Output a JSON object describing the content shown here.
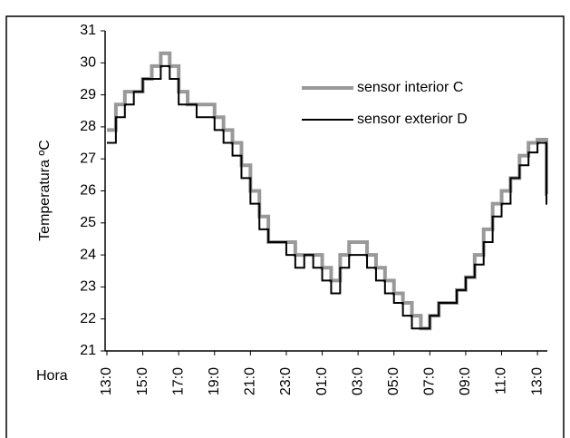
{
  "chart_data": {
    "type": "line",
    "step": "post",
    "y_label": "Temperatura ºC",
    "x_label": "Hora",
    "x": [
      13,
      13.5,
      14,
      14.5,
      15,
      15.5,
      16,
      16.5,
      17,
      17.5,
      18,
      18.5,
      19,
      19.5,
      20,
      20.5,
      21,
      21.5,
      22,
      22.5,
      23,
      23.5,
      24,
      24.5,
      25,
      25.5,
      26,
      26.5,
      27,
      27.5,
      28,
      28.5,
      29,
      29.5,
      30,
      30.5,
      31,
      31.5,
      32,
      32.5,
      33,
      33.5,
      34,
      34.5,
      35,
      35.5,
      36,
      36.5,
      37,
      37.5
    ],
    "series": [
      {
        "name": "sensor interior C",
        "color": "#999999",
        "width": 4,
        "values": [
          27.9,
          28.7,
          29.1,
          29.1,
          29.5,
          29.9,
          30.3,
          29.9,
          29.1,
          28.7,
          28.7,
          28.7,
          28.3,
          27.9,
          27.5,
          26.8,
          26.0,
          25.2,
          24.4,
          24.4,
          24.4,
          24.0,
          24.0,
          24.0,
          23.6,
          23.2,
          24.0,
          24.4,
          24.4,
          24.0,
          23.6,
          23.2,
          22.8,
          22.5,
          22.1,
          21.7,
          22.1,
          22.5,
          22.5,
          22.9,
          23.3,
          24.0,
          24.8,
          25.6,
          26.0,
          26.4,
          27.1,
          27.5,
          27.6,
          25.9
        ]
      },
      {
        "name": "sensor exterior D",
        "color": "#000000",
        "width": 2,
        "values": [
          27.5,
          28.3,
          28.7,
          29.1,
          29.5,
          29.5,
          29.9,
          29.5,
          28.7,
          28.7,
          28.3,
          28.3,
          27.9,
          27.5,
          27.1,
          26.4,
          25.6,
          24.8,
          24.4,
          24.4,
          24.0,
          23.6,
          24.0,
          23.6,
          23.2,
          22.8,
          23.6,
          24.0,
          24.0,
          23.6,
          23.2,
          22.8,
          22.5,
          22.1,
          21.7,
          21.7,
          22.1,
          22.5,
          22.5,
          22.9,
          23.3,
          23.7,
          24.4,
          25.2,
          25.6,
          26.4,
          26.8,
          27.2,
          27.5,
          25.6
        ]
      }
    ],
    "xlim": [
      12.9,
      37.55
    ],
    "xticks": [
      {
        "value": 13,
        "label": "13:0"
      },
      {
        "value": 15,
        "label": "15:0"
      },
      {
        "value": 17,
        "label": "17:0"
      },
      {
        "value": 19,
        "label": "19:0"
      },
      {
        "value": 21,
        "label": "21:0"
      },
      {
        "value": 23,
        "label": "23:0"
      },
      {
        "value": 25,
        "label": "01:0"
      },
      {
        "value": 27,
        "label": "03:0"
      },
      {
        "value": 29,
        "label": "05:0"
      },
      {
        "value": 31,
        "label": "07:0"
      },
      {
        "value": 33,
        "label": "09:0"
      },
      {
        "value": 35,
        "label": "11:0"
      },
      {
        "value": 37,
        "label": "13:0"
      }
    ],
    "ylim": [
      21,
      31
    ],
    "yticks": [
      21,
      22,
      23,
      24,
      25,
      26,
      27,
      28,
      29,
      30,
      31
    ],
    "grid": false,
    "legend": "upper right"
  }
}
